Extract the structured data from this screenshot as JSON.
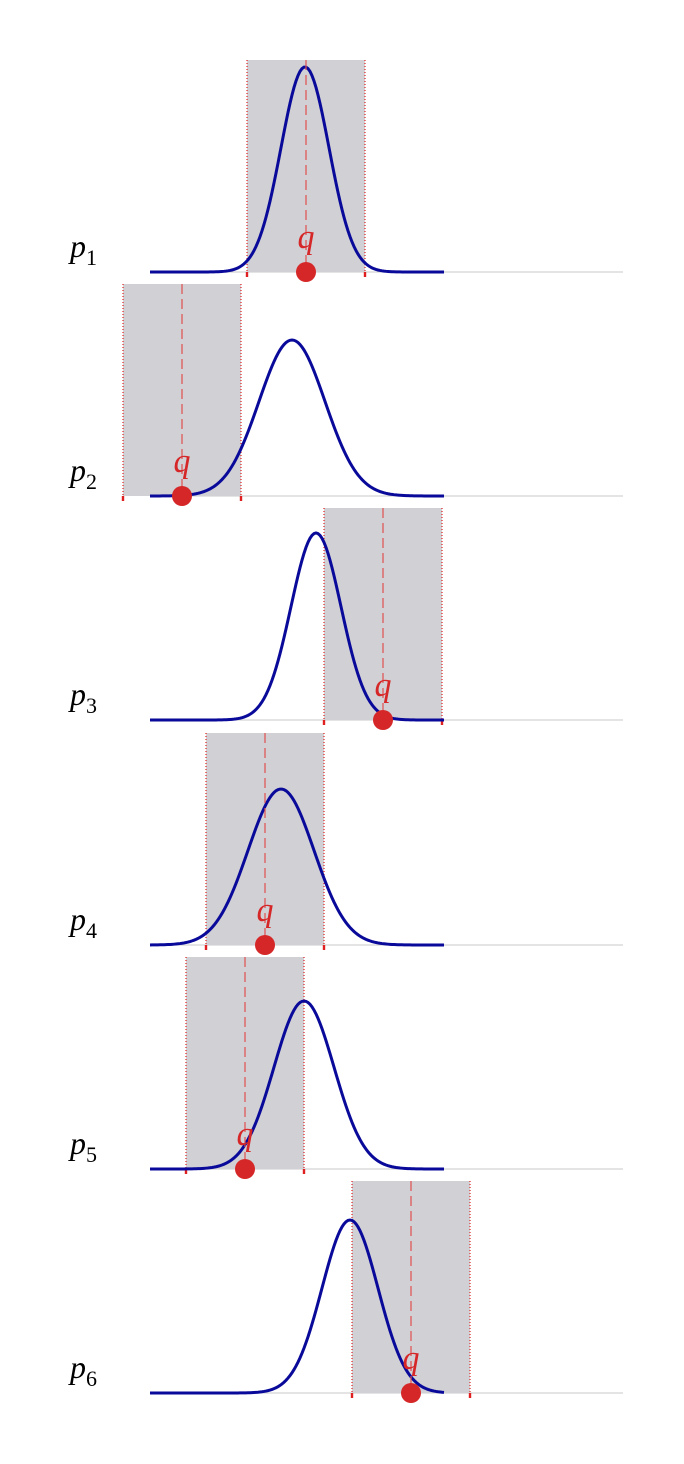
{
  "panels": [
    {
      "label": {
        "base": "p",
        "sub": "1"
      },
      "query": "q"
    },
    {
      "label": {
        "base": "p",
        "sub": "2"
      },
      "query": "q"
    },
    {
      "label": {
        "base": "p",
        "sub": "3"
      },
      "query": "q"
    },
    {
      "label": {
        "base": "p",
        "sub": "4"
      },
      "query": "q"
    },
    {
      "label": {
        "base": "p",
        "sub": "5"
      },
      "query": "q"
    },
    {
      "label": {
        "base": "p",
        "sub": "6"
      },
      "query": "q"
    }
  ]
}
